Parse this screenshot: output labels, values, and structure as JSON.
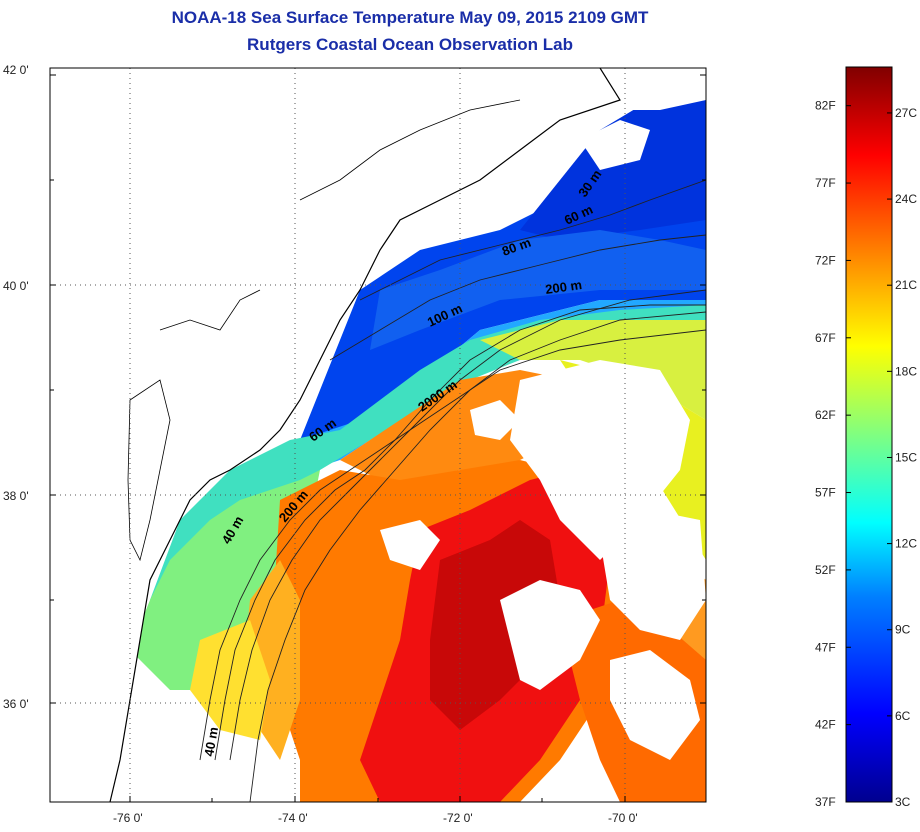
{
  "title": "NOAA-18 Sea Surface Temperature May 09, 2015 2109 GMT",
  "subtitle": "Rutgers Coastal Ocean Observation Lab",
  "map": {
    "lat_labels": [
      "42 0'",
      "40 0'",
      "38 0'",
      "36 0'"
    ],
    "lon_labels": [
      "-76 0'",
      "-74 0'",
      "-72 0'",
      "-70 0'"
    ],
    "contours": [
      "30 m",
      "60 m",
      "80 m",
      "100 m",
      "200 m",
      "2000 m",
      "60 m",
      "40 m",
      "200 m",
      "40 m"
    ]
  },
  "colorbar": {
    "fahrenheit": [
      "82F",
      "77F",
      "72F",
      "67F",
      "62F",
      "57F",
      "52F",
      "47F",
      "42F",
      "37F"
    ],
    "celsius": [
      "27C",
      "24C",
      "21C",
      "18C",
      "15C",
      "12C",
      "9C",
      "6C",
      "3C"
    ],
    "colors": [
      "#800000",
      "#ff0000",
      "#ff8000",
      "#ffff00",
      "#80ff80",
      "#00ffff",
      "#0080ff",
      "#0000ff",
      "#00008f"
    ]
  }
}
